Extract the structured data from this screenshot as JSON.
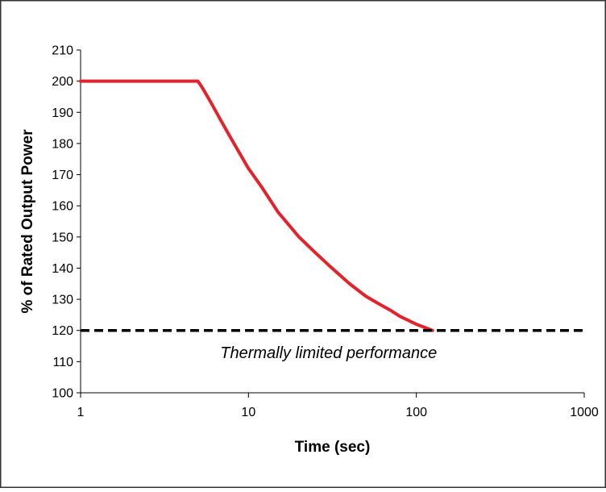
{
  "chart_data": {
    "type": "line",
    "title": "",
    "xlabel": "Time (sec)",
    "ylabel": "% of Rated Output Power",
    "x_scale": "log",
    "xlim": [
      1,
      1000
    ],
    "ylim": [
      100,
      210
    ],
    "x_ticks": [
      1,
      10,
      100,
      1000
    ],
    "y_ticks": [
      100,
      110,
      120,
      130,
      140,
      150,
      160,
      170,
      180,
      190,
      200,
      210
    ],
    "grid": false,
    "legend": "none",
    "series": [
      {
        "color": "#e3222b",
        "line_style": "solid",
        "points": [
          [
            1,
            200
          ],
          [
            5,
            200
          ],
          [
            5.3,
            198
          ],
          [
            6,
            193
          ],
          [
            7,
            186.5
          ],
          [
            8,
            181
          ],
          [
            10,
            172
          ],
          [
            12,
            166
          ],
          [
            15,
            158
          ],
          [
            20,
            150
          ],
          [
            25,
            145
          ],
          [
            30,
            141
          ],
          [
            40,
            135
          ],
          [
            50,
            131
          ],
          [
            60,
            128.5
          ],
          [
            70,
            126.5
          ],
          [
            80,
            124.5
          ],
          [
            100,
            122
          ],
          [
            125,
            120
          ]
        ]
      },
      {
        "color": "#000000",
        "line_style": "dashed",
        "points": [
          [
            1,
            120
          ],
          [
            1000,
            120
          ]
        ]
      }
    ],
    "annotations": [
      {
        "text": "Thermally limited performance",
        "x": 30,
        "y": 113
      }
    ]
  }
}
